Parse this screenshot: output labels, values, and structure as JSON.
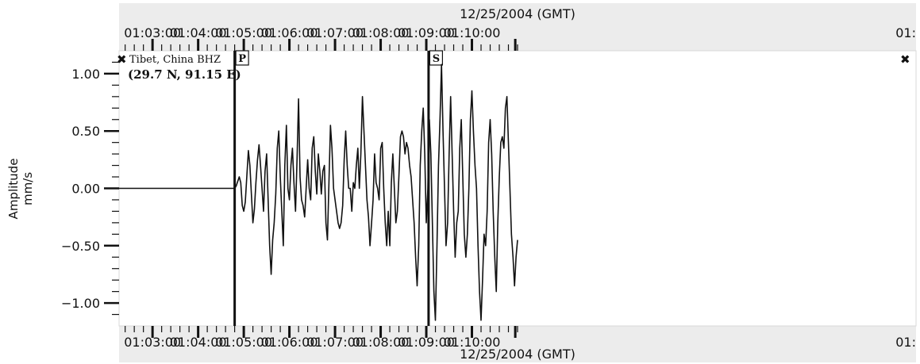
{
  "chart_data": {
    "type": "line",
    "title_top": "12/25/2004 (GMT)",
    "title_bottom": "12/25/2004 (GMT)",
    "ylabel_line1": "Amplitude",
    "ylabel_line2": "mm/s",
    "station_label": "Tibet, China BHZ",
    "coords_label": "(29.7 N, 91.15 E)",
    "marker_icon": "cross-marker-icon",
    "ylim": [
      -1.2,
      1.2
    ],
    "xlim": [
      -44,
      1004
    ],
    "x_unit": "seconds after 01:03:00",
    "x_ticks": [
      {
        "t": 0,
        "label": "01:03:00"
      },
      {
        "t": 60,
        "label": "01:04:00"
      },
      {
        "t": 120,
        "label": "01:05:00"
      },
      {
        "t": 180,
        "label": "01:06:00"
      },
      {
        "t": 240,
        "label": "01:07:00"
      },
      {
        "t": 300,
        "label": "01:08:00"
      },
      {
        "t": 360,
        "label": "01:09:00"
      },
      {
        "t": 420,
        "label": "01:10:00"
      },
      {
        "t": 477,
        "label": "01:"
      }
    ],
    "y_ticks": [
      {
        "v": 1.0,
        "label": "1.00"
      },
      {
        "v": 0.5,
        "label": "0.50"
      },
      {
        "v": 0.0,
        "label": "0.00"
      },
      {
        "v": -0.5,
        "label": "−0.50"
      },
      {
        "v": -1.0,
        "label": "−1.00"
      }
    ],
    "phase_markers": [
      {
        "label": "P",
        "t": 108
      },
      {
        "label": "S",
        "t": 363
      }
    ],
    "series": [
      {
        "values": [
          [
            -44,
            0.0
          ],
          [
            108,
            0.0
          ],
          [
            110,
            0.02
          ],
          [
            112,
            0.06
          ],
          [
            114,
            0.1
          ],
          [
            116,
            0.05
          ],
          [
            118,
            -0.15
          ],
          [
            120,
            -0.2
          ],
          [
            122,
            -0.12
          ],
          [
            124,
            0.1
          ],
          [
            126,
            0.33
          ],
          [
            128,
            0.2
          ],
          [
            130,
            -0.05
          ],
          [
            132,
            -0.3
          ],
          [
            134,
            -0.18
          ],
          [
            136,
            0.05
          ],
          [
            138,
            0.25
          ],
          [
            140,
            0.38
          ],
          [
            142,
            0.2
          ],
          [
            144,
            0.0
          ],
          [
            146,
            -0.2
          ],
          [
            148,
            0.15
          ],
          [
            150,
            0.3
          ],
          [
            152,
            -0.1
          ],
          [
            154,
            -0.5
          ],
          [
            156,
            -0.75
          ],
          [
            158,
            -0.45
          ],
          [
            160,
            -0.3
          ],
          [
            162,
            -0.05
          ],
          [
            164,
            0.35
          ],
          [
            166,
            0.5
          ],
          [
            168,
            0.1
          ],
          [
            170,
            -0.2
          ],
          [
            172,
            -0.5
          ],
          [
            174,
            0.2
          ],
          [
            176,
            0.55
          ],
          [
            178,
            0.0
          ],
          [
            180,
            -0.1
          ],
          [
            182,
            0.2
          ],
          [
            184,
            0.35
          ],
          [
            186,
            0.05
          ],
          [
            188,
            -0.2
          ],
          [
            190,
            0.25
          ],
          [
            192,
            0.78
          ],
          [
            194,
            0.1
          ],
          [
            196,
            -0.1
          ],
          [
            198,
            -0.15
          ],
          [
            200,
            -0.25
          ],
          [
            202,
            0.0
          ],
          [
            204,
            0.25
          ],
          [
            206,
            0.0
          ],
          [
            208,
            -0.1
          ],
          [
            210,
            0.35
          ],
          [
            212,
            0.45
          ],
          [
            214,
            0.15
          ],
          [
            216,
            -0.05
          ],
          [
            218,
            0.3
          ],
          [
            220,
            0.15
          ],
          [
            222,
            -0.05
          ],
          [
            224,
            0.15
          ],
          [
            226,
            0.2
          ],
          [
            228,
            -0.3
          ],
          [
            230,
            -0.45
          ],
          [
            232,
            0.05
          ],
          [
            234,
            0.55
          ],
          [
            236,
            0.35
          ],
          [
            238,
            0.0
          ],
          [
            240,
            -0.1
          ],
          [
            242,
            -0.2
          ],
          [
            244,
            -0.3
          ],
          [
            246,
            -0.35
          ],
          [
            248,
            -0.3
          ],
          [
            250,
            -0.15
          ],
          [
            252,
            0.25
          ],
          [
            254,
            0.5
          ],
          [
            256,
            0.2
          ],
          [
            258,
            0.0
          ],
          [
            260,
            0.0
          ],
          [
            262,
            -0.2
          ],
          [
            264,
            0.05
          ],
          [
            266,
            0.0
          ],
          [
            268,
            0.2
          ],
          [
            270,
            0.35
          ],
          [
            272,
            0.0
          ],
          [
            274,
            0.3
          ],
          [
            276,
            0.8
          ],
          [
            278,
            0.5
          ],
          [
            280,
            0.2
          ],
          [
            282,
            -0.1
          ],
          [
            284,
            -0.25
          ],
          [
            286,
            -0.5
          ],
          [
            288,
            -0.3
          ],
          [
            290,
            -0.1
          ],
          [
            292,
            0.3
          ],
          [
            294,
            0.05
          ],
          [
            296,
            0.0
          ],
          [
            298,
            -0.1
          ],
          [
            300,
            0.35
          ],
          [
            302,
            0.4
          ],
          [
            304,
            0.0
          ],
          [
            306,
            -0.3
          ],
          [
            308,
            -0.5
          ],
          [
            310,
            -0.2
          ],
          [
            312,
            -0.5
          ],
          [
            314,
            0.05
          ],
          [
            316,
            0.3
          ],
          [
            318,
            0.0
          ],
          [
            320,
            -0.3
          ],
          [
            322,
            -0.2
          ],
          [
            324,
            0.1
          ],
          [
            326,
            0.45
          ],
          [
            328,
            0.5
          ],
          [
            330,
            0.45
          ],
          [
            332,
            0.3
          ],
          [
            334,
            0.4
          ],
          [
            336,
            0.35
          ],
          [
            338,
            0.2
          ],
          [
            340,
            0.1
          ],
          [
            342,
            -0.1
          ],
          [
            344,
            -0.3
          ],
          [
            346,
            -0.6
          ],
          [
            348,
            -0.85
          ],
          [
            350,
            -0.5
          ],
          [
            352,
            0.2
          ],
          [
            354,
            0.5
          ],
          [
            356,
            0.7
          ],
          [
            358,
            0.3
          ],
          [
            360,
            -0.3
          ],
          [
            362,
            0.0
          ],
          [
            364,
            0.6
          ],
          [
            366,
            0.3
          ],
          [
            368,
            -0.3
          ],
          [
            370,
            -0.9
          ],
          [
            372,
            -1.15
          ],
          [
            374,
            -0.5
          ],
          [
            376,
            0.2
          ],
          [
            378,
            0.6
          ],
          [
            380,
            1.08
          ],
          [
            382,
            0.5
          ],
          [
            384,
            0.0
          ],
          [
            386,
            -0.5
          ],
          [
            388,
            -0.3
          ],
          [
            390,
            0.3
          ],
          [
            392,
            0.8
          ],
          [
            394,
            0.3
          ],
          [
            396,
            -0.2
          ],
          [
            398,
            -0.6
          ],
          [
            400,
            -0.3
          ],
          [
            402,
            -0.2
          ],
          [
            404,
            0.35
          ],
          [
            406,
            0.6
          ],
          [
            408,
            0.1
          ],
          [
            410,
            -0.4
          ],
          [
            412,
            -0.6
          ],
          [
            414,
            -0.4
          ],
          [
            416,
            0.0
          ],
          [
            418,
            0.6
          ],
          [
            420,
            0.85
          ],
          [
            422,
            0.5
          ],
          [
            424,
            0.2
          ],
          [
            426,
            0.0
          ],
          [
            428,
            -0.5
          ],
          [
            430,
            -0.9
          ],
          [
            432,
            -1.15
          ],
          [
            434,
            -0.8
          ],
          [
            436,
            -0.4
          ],
          [
            438,
            -0.5
          ],
          [
            440,
            -0.2
          ],
          [
            442,
            0.4
          ],
          [
            444,
            0.6
          ],
          [
            446,
            0.3
          ],
          [
            448,
            -0.2
          ],
          [
            450,
            -0.6
          ],
          [
            452,
            -0.9
          ],
          [
            454,
            -0.3
          ],
          [
            456,
            0.1
          ],
          [
            458,
            0.4
          ],
          [
            460,
            0.45
          ],
          [
            462,
            0.35
          ],
          [
            464,
            0.7
          ],
          [
            466,
            0.8
          ],
          [
            468,
            0.4
          ],
          [
            470,
            0.0
          ],
          [
            472,
            -0.4
          ],
          [
            474,
            -0.6
          ],
          [
            476,
            -0.85
          ],
          [
            478,
            -0.6
          ],
          [
            480,
            -0.45
          ]
        ]
      }
    ]
  }
}
